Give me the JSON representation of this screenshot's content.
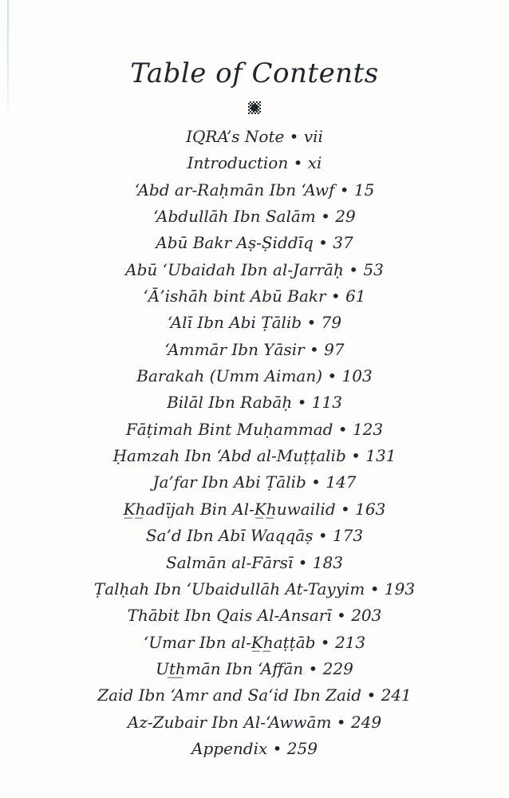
{
  "document": {
    "title": "Table of Contents"
  },
  "icons": {
    "ornament_icon": "square-rosette-printer-ornament"
  },
  "colors": {
    "ink": "#20272d",
    "paper": "#fdfdfb",
    "scan_artifact": "#c9e1f2"
  },
  "toc": {
    "separator": "•",
    "entries": [
      "IQRA’s Note • vii",
      "Introduction • xi",
      "‘Abd ar-Raḥmān Ibn ‘Awf • 15",
      "‘Abdullāh Ibn Salām • 29",
      "Abū Bakr Aṣ-Ṣiddīq • 37",
      "Abū ‘Ubaidah Ibn al-Jarrāḥ • 53",
      "‘Ā’ishāh bint Abū Bakr • 61",
      "‘Alī Ibn Abi Ṭālib • 79",
      "‘Ammār Ibn Yāsir • 97",
      "Barakah (Umm Aiman) • 103",
      "Bilāl Ibn Rabāḥ • 113",
      "Fāṭimah Bint Muḥammad • 123",
      "Ḥamzah Ibn ‘Abd al-Muṭṭalib • 131",
      "Ja’far Ibn Abi Ṭālib • 147",
      "K̲h̲adījah Bin Al-K̲h̲uwailid • 163",
      "Sa’d Ibn Abī Waqqāṣ • 173",
      "Salmān al-Fārsī • 183",
      "Ṭalḥah Ibn ‘Ubaidullāh At-Tayyim • 193",
      "Thābit Ibn Qais Al-Ansarī • 203",
      "‘Umar Ibn al-K̲h̲aṭṭāb • 213",
      "Ut̲h̲mān Ibn ‘Affān • 229",
      "Zaid Ibn ‘Amr and Sa‘id Ibn Zaid • 241",
      "Az-Zubair Ibn Al-‘Awwām • 249",
      "Appendix • 259"
    ]
  }
}
